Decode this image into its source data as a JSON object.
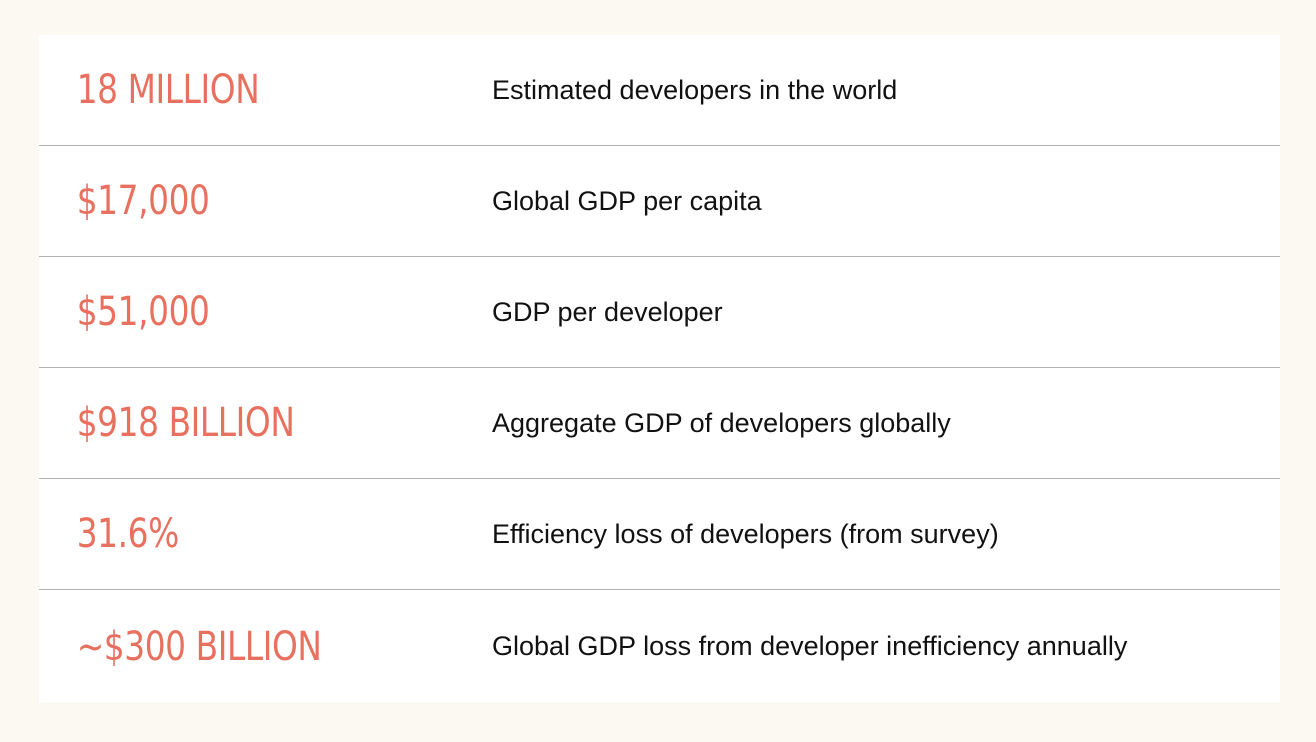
{
  "stats": [
    {
      "value": "18 MILLION",
      "description": "Estimated developers in the world"
    },
    {
      "value": "$17,000",
      "description": "Global GDP per capita"
    },
    {
      "value": "$51,000",
      "description": "GDP per developer"
    },
    {
      "value": "$918 BILLION",
      "description": "Aggregate GDP of developers globally"
    },
    {
      "value": "31.6%",
      "description": "Efficiency loss of developers (from survey)"
    },
    {
      "value": "~$300 BILLION",
      "description": "Global GDP loss from developer inefficiency annually"
    }
  ],
  "colors": {
    "value_accent": "#e8705f",
    "background": "#fcf8f2",
    "table": "#ffffff",
    "divider": "#b0b0b0"
  }
}
